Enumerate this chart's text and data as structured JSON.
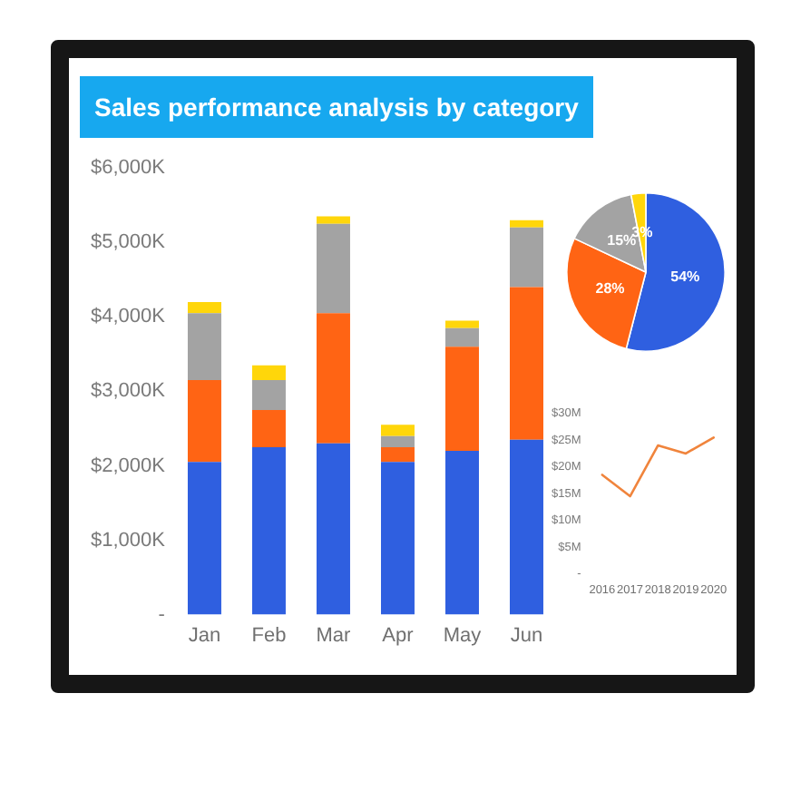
{
  "chart_data": [
    {
      "type": "bar",
      "title": "Sales performance analysis by category",
      "categories": [
        "Jan",
        "Feb",
        "Mar",
        "Apr",
        "May",
        "Jun"
      ],
      "stacked": true,
      "series": [
        {
          "color": "#2f5fe0",
          "values": [
            2050,
            2250,
            2300,
            2050,
            2200,
            2350
          ]
        },
        {
          "color": "#ff6414",
          "values": [
            1100,
            500,
            1750,
            200,
            1400,
            2050
          ]
        },
        {
          "color": "#a3a3a3",
          "values": [
            900,
            400,
            1200,
            150,
            250,
            800
          ]
        },
        {
          "color": "#ffd60a",
          "values": [
            150,
            200,
            100,
            150,
            100,
            100
          ]
        }
      ],
      "ylim": [
        0,
        6000
      ],
      "yticks": [
        {
          "value": 0,
          "label": "-"
        },
        {
          "value": 1000,
          "label": "$1,000K"
        },
        {
          "value": 2000,
          "label": "$2,000K"
        },
        {
          "value": 3000,
          "label": "$3,000K"
        },
        {
          "value": 4000,
          "label": "$4,000K"
        },
        {
          "value": 5000,
          "label": "$5,000K"
        },
        {
          "value": 6000,
          "label": "$6,000K"
        }
      ]
    },
    {
      "type": "pie",
      "categories": [
        null,
        null,
        null,
        null
      ],
      "values": [
        54,
        28,
        15,
        3
      ],
      "colors": [
        "#2f5fe0",
        "#ff6414",
        "#a3a3a3",
        "#ffd60a"
      ],
      "value_labels": [
        "54%",
        "28%",
        "15%",
        "3%"
      ]
    },
    {
      "type": "line",
      "categories": [
        "2016",
        "2017",
        "2018",
        "2019",
        "2020"
      ],
      "series": [
        {
          "color": "#f0843c",
          "values": [
            18.5,
            14.5,
            24,
            22.5,
            25.5
          ]
        }
      ],
      "ylim": [
        0,
        30
      ],
      "yticks": [
        {
          "value": 0,
          "label": "-"
        },
        {
          "value": 5,
          "label": "$5M"
        },
        {
          "value": 10,
          "label": "$10M"
        },
        {
          "value": 15,
          "label": "$15M"
        },
        {
          "value": 20,
          "label": "$20M"
        },
        {
          "value": 25,
          "label": "$25M"
        },
        {
          "value": 30,
          "label": "$30M"
        }
      ]
    }
  ]
}
